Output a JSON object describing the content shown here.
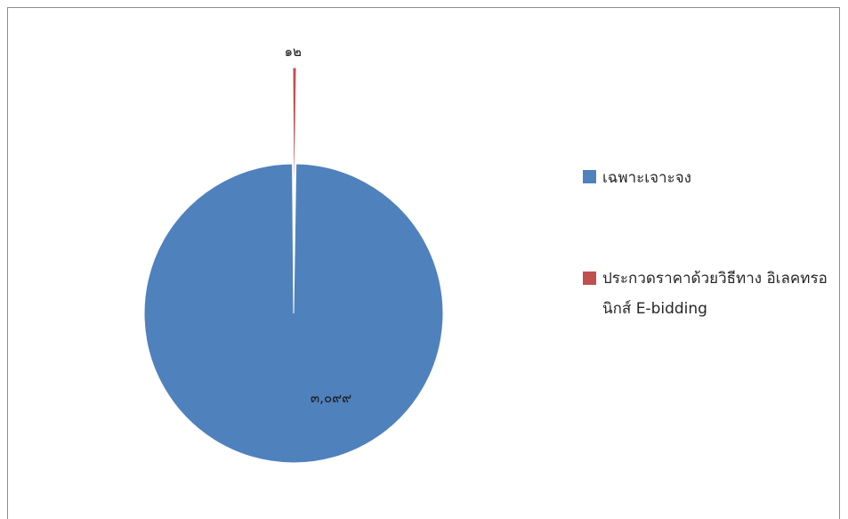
{
  "chart_data": {
    "type": "pie",
    "title": "",
    "slices": [
      {
        "label": "เฉพาะเจาะจง",
        "value": 3099,
        "display_value": "๓,๐๙๙",
        "color": "#4F81BD"
      },
      {
        "label": "ประกวดราคาด้วยวิธีทาง อิเลคทรอนิกส์ E-bidding",
        "value": 12,
        "display_value": "๑๒",
        "color": "#C0504D"
      }
    ],
    "legend_position": "right"
  },
  "legend": {
    "items": [
      {
        "label": "เฉพาะเจาะจง",
        "color": "#4F81BD"
      },
      {
        "label": "ประกวดราคาด้วยวิธีทาง อิเลคทรอนิกส์ E-bidding",
        "color": "#C0504D"
      }
    ]
  }
}
